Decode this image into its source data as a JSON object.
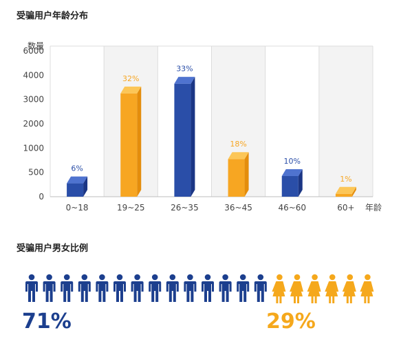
{
  "section1_title": "受骗用户年龄分布",
  "section2_title": "受骗用户男女比例",
  "colors": {
    "blue": "#2a4ea8",
    "blue_dark": "#1b3685",
    "blue_top": "#4f73cf",
    "orange": "#f7a622",
    "orange_dark": "#e48d0c",
    "orange_top": "#fcc657",
    "male": "#1c3f8e",
    "female": "#f5a81c"
  },
  "chart_data": {
    "type": "bar",
    "ylabel": "数量",
    "xlabel": "年龄",
    "yticks": [
      "0",
      "500",
      "1000",
      "2000",
      "3000",
      "4000",
      "6000"
    ],
    "categories": [
      "0~18",
      "19~25",
      "26~35",
      "36~45",
      "46~60",
      "60+"
    ],
    "percent_labels": [
      "6%",
      "32%",
      "33%",
      "18%",
      "10%",
      "1%"
    ],
    "tick_levels": [
      0,
      1,
      2,
      3,
      4,
      5,
      6
    ],
    "bar_levels": [
      0.55,
      4.25,
      4.65,
      1.55,
      0.85,
      0.12
    ],
    "bar_colors": [
      "blue",
      "orange",
      "blue",
      "orange",
      "blue",
      "orange"
    ],
    "grid": "vertical"
  },
  "gender": {
    "male_label": "71%",
    "female_label": "29%",
    "male_count": 14,
    "female_count": 6
  }
}
